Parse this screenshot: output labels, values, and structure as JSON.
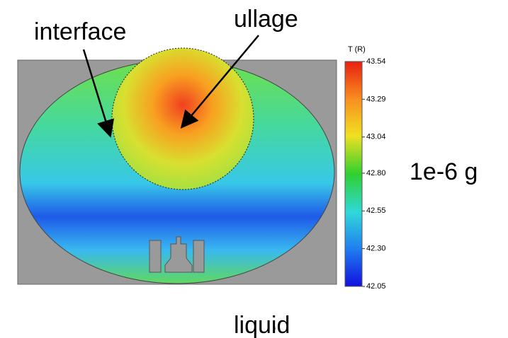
{
  "labels": {
    "interface": "interface",
    "ullage": "ullage",
    "gravity": "1e-6 g",
    "liquid": "liquid"
  },
  "colorbar": {
    "title": "T (R)",
    "lim": [
      42.05,
      43.54
    ],
    "ticks": [
      43.54,
      43.29,
      43.04,
      {
        "value": 42.8,
        "label": "42.80"
      },
      42.55,
      {
        "value": 42.3,
        "label": "42.30"
      },
      42.05
    ]
  }
}
